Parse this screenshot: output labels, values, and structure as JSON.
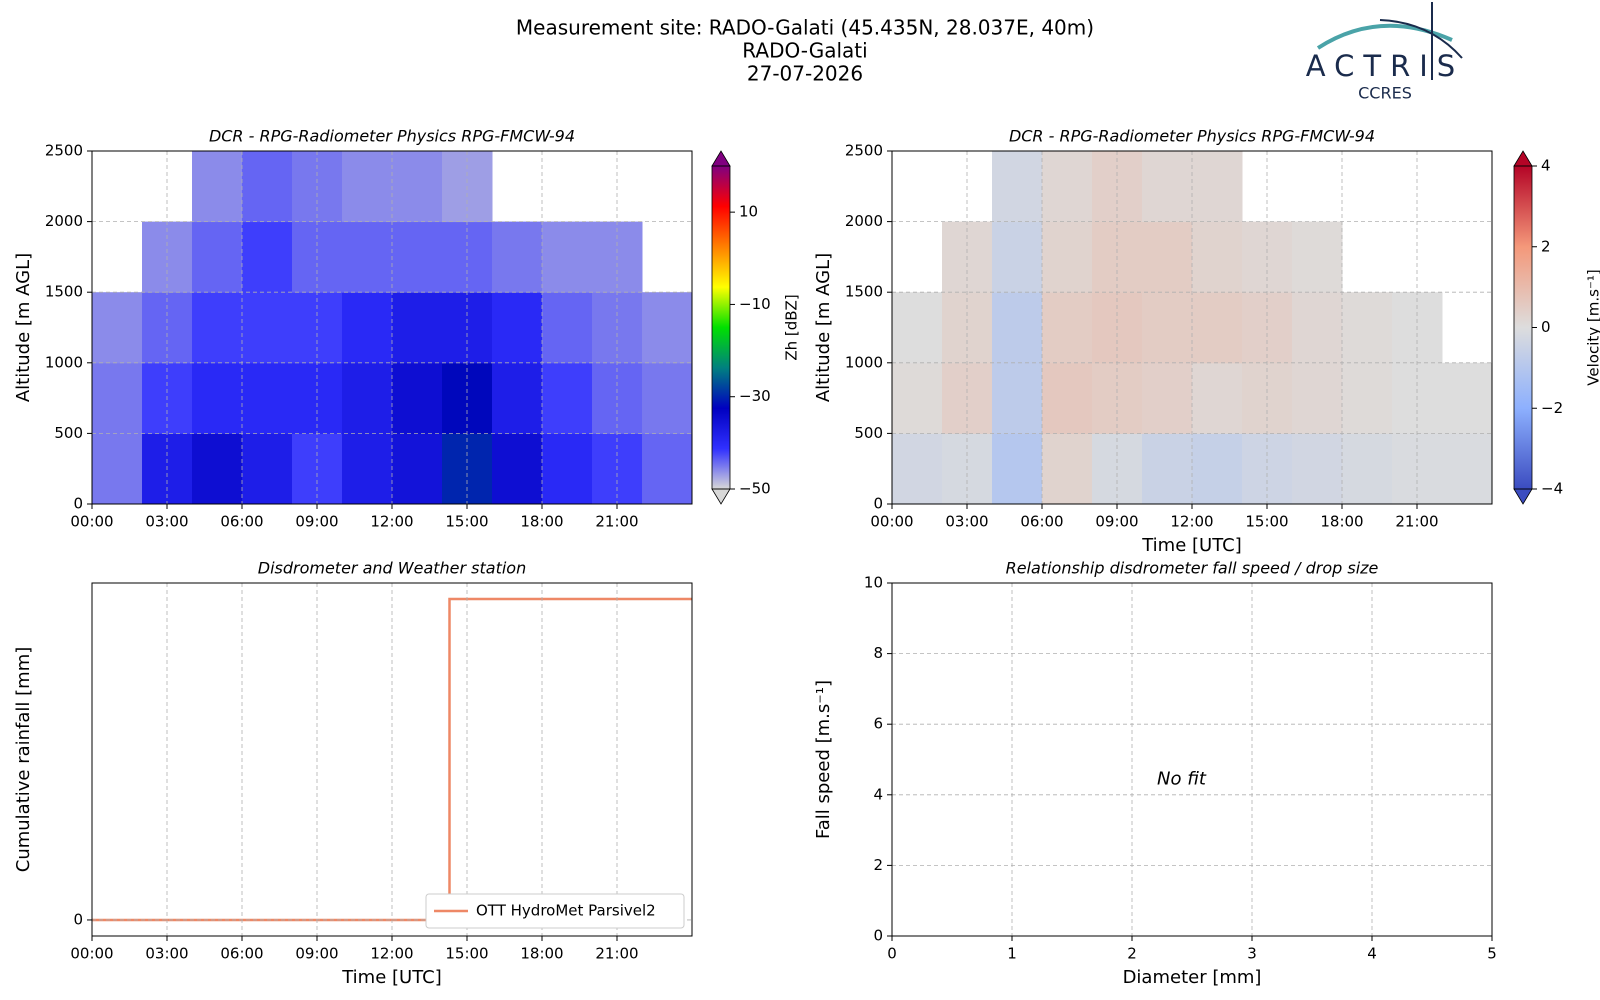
{
  "header": {
    "lines": [
      "Measurement site: RADO-Galati (45.435N, 28.037E, 40m)",
      "RADO-Galati",
      "27-07-2026"
    ],
    "logo": "ACTRIS",
    "logo_sub": "CCRES"
  },
  "chart_data": [
    {
      "type": "heatmap",
      "title": "DCR - RPG-Radiometer Physics RPG-FMCW-94",
      "ylabel": "Altitude [m AGL]",
      "xlim": [
        0,
        24
      ],
      "xticks": [
        {
          "value": 0,
          "label": "00:00"
        },
        {
          "value": 3,
          "label": "03:00"
        },
        {
          "value": 6,
          "label": "06:00"
        },
        {
          "value": 9,
          "label": "09:00"
        },
        {
          "value": 12,
          "label": "12:00"
        },
        {
          "value": 15,
          "label": "15:00"
        },
        {
          "value": 18,
          "label": "18:00"
        },
        {
          "value": 21,
          "label": "21:00"
        }
      ],
      "ylim": [
        0,
        2500
      ],
      "yticks": [
        0,
        500,
        1000,
        1500,
        2000,
        2500
      ],
      "grid": true,
      "x": [
        1,
        3,
        5,
        7,
        9,
        11,
        13,
        15,
        17,
        19,
        21,
        23
      ],
      "y": [
        250,
        750,
        1250,
        1750,
        2250
      ],
      "z": [
        [
          -45,
          -38,
          -35,
          -38,
          -42,
          -38,
          -36,
          -30,
          -35,
          -40,
          -42,
          -44
        ],
        [
          -45,
          -42,
          -40,
          -40,
          -40,
          -38,
          -35,
          -32,
          -38,
          -42,
          -44,
          -45
        ],
        [
          -46,
          -44,
          -42,
          -42,
          -42,
          -40,
          -38,
          -38,
          -40,
          -44,
          -45,
          -46
        ],
        [
          null,
          -46,
          -44,
          -42,
          -44,
          -44,
          -44,
          -44,
          -45,
          -46,
          -46,
          null
        ],
        [
          null,
          null,
          -46,
          -44,
          -45,
          -46,
          -46,
          -47,
          null,
          null,
          null,
          null
        ]
      ],
      "colorbar_label": "Zh [dBZ]",
      "clim": [
        -50,
        20
      ],
      "cticks": [
        {
          "value": -50,
          "label": "−50"
        },
        {
          "value": -30,
          "label": "−30"
        },
        {
          "value": -10,
          "label": "−10"
        },
        10
      ],
      "colormap": [
        "#d8d8d8",
        "#3030ff",
        "#0000c0",
        "#008080",
        "#00e000",
        "#ffff00",
        "#ff8000",
        "#ff0000",
        "#800080"
      ]
    },
    {
      "type": "heatmap",
      "title": "DCR - RPG-Radiometer Physics RPG-FMCW-94",
      "ylabel": "Altitude [m AGL]",
      "xlabel": "Time [UTC]",
      "xlim": [
        0,
        24
      ],
      "xticks": [
        {
          "value": 0,
          "label": "00:00"
        },
        {
          "value": 3,
          "label": "03:00"
        },
        {
          "value": 6,
          "label": "06:00"
        },
        {
          "value": 9,
          "label": "09:00"
        },
        {
          "value": 12,
          "label": "12:00"
        },
        {
          "value": 15,
          "label": "15:00"
        },
        {
          "value": 18,
          "label": "18:00"
        },
        {
          "value": 21,
          "label": "21:00"
        }
      ],
      "ylim": [
        0,
        2500
      ],
      "yticks": [
        0,
        500,
        1000,
        1500,
        2000,
        2500
      ],
      "grid": true,
      "x": [
        1,
        3,
        5,
        7,
        9,
        11,
        13,
        15,
        17,
        19,
        21,
        23
      ],
      "y": [
        250,
        750,
        1250,
        1750,
        2250
      ],
      "z": [
        [
          -0.3,
          -0.2,
          -1.0,
          0.3,
          -0.2,
          -0.5,
          -0.6,
          -0.4,
          -0.3,
          -0.2,
          -0.1,
          -0.1
        ],
        [
          0.1,
          0.4,
          -0.8,
          0.6,
          0.5,
          0.4,
          0.2,
          0.3,
          0.2,
          0.1,
          0,
          0
        ],
        [
          0,
          0.3,
          -0.8,
          0.5,
          0.6,
          0.5,
          0.5,
          0.4,
          0.2,
          0.1,
          0,
          null
        ],
        [
          null,
          0.2,
          -0.5,
          0.3,
          0.5,
          0.5,
          0.3,
          0.2,
          0.1,
          null,
          null,
          null
        ],
        [
          null,
          null,
          -0.3,
          0.2,
          0.4,
          0.2,
          0.2,
          null,
          null,
          null,
          null,
          null
        ]
      ],
      "colorbar_label": "Velocity [m.s⁻¹]",
      "clim": [
        -4,
        4
      ],
      "cticks": [
        {
          "value": -4,
          "label": "−4"
        },
        {
          "value": -2,
          "label": "−2"
        },
        0,
        2,
        4
      ],
      "colormap": [
        "#3b4cc0",
        "#8db0fe",
        "#dddddd",
        "#f4987a",
        "#b40426"
      ]
    },
    {
      "type": "line",
      "title": "Disdrometer and Weather station",
      "xlabel": "Time [UTC]",
      "ylabel": "Cumulative rainfall [mm]",
      "xlim": [
        0,
        24
      ],
      "xticks": [
        {
          "value": 0,
          "label": "00:00"
        },
        {
          "value": 3,
          "label": "03:00"
        },
        {
          "value": 6,
          "label": "06:00"
        },
        {
          "value": 9,
          "label": "09:00"
        },
        {
          "value": 12,
          "label": "12:00"
        },
        {
          "value": 15,
          "label": "15:00"
        },
        {
          "value": 18,
          "label": "18:00"
        },
        {
          "value": 21,
          "label": "21:00"
        }
      ],
      "ylim": [
        -0.05,
        1.05
      ],
      "yticks": [
        0
      ],
      "grid": true,
      "legend": "lower right",
      "x": [
        0,
        14.3,
        14.3,
        24
      ],
      "series": [
        {
          "name": "OTT HydroMet Parsivel2",
          "color": "#ee8866",
          "values": [
            0,
            0,
            1.0,
            1.0
          ]
        }
      ]
    },
    {
      "type": "scatter",
      "title": "Relationship disdrometer fall speed / drop size",
      "xlabel": "Diameter [mm]",
      "ylabel": "Fall speed [m.s⁻¹]",
      "xlim": [
        0,
        5
      ],
      "xticks": [
        0,
        1,
        2,
        3,
        4,
        5
      ],
      "ylim": [
        0,
        10
      ],
      "yticks": [
        0,
        2,
        4,
        6,
        8,
        10
      ],
      "grid": true,
      "annotation": "No fit"
    }
  ]
}
